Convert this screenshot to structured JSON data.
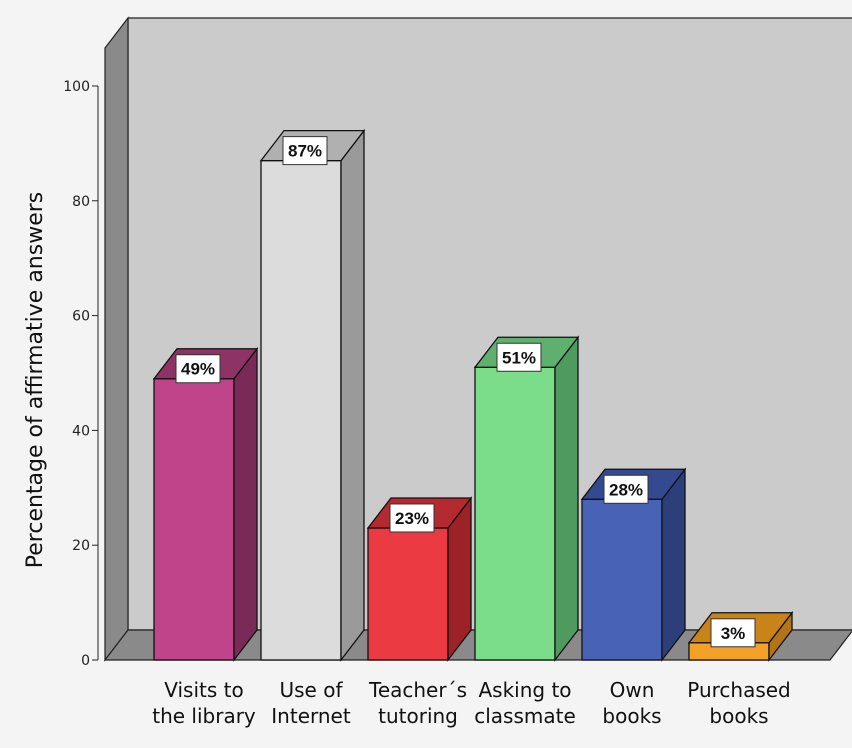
{
  "chart_data": {
    "type": "bar",
    "title": "",
    "xlabel": "",
    "ylabel": "Percentage of affirmative answers",
    "ylim": [
      0,
      100
    ],
    "yticks": [
      "0",
      "20",
      "40",
      "60",
      "80",
      "100"
    ],
    "categories": [
      [
        "Visits to",
        "the library"
      ],
      [
        "Use of",
        "Internet"
      ],
      [
        "Teacher´s",
        "tutoring"
      ],
      [
        "Asking to",
        "classmate"
      ],
      [
        "Own",
        "books"
      ],
      [
        "Purchased",
        "books"
      ]
    ],
    "values": [
      49,
      87,
      23,
      51,
      28,
      3
    ],
    "data_labels": [
      "49%",
      "87%",
      "23%",
      "51%",
      "28%",
      "3%"
    ],
    "bar_colors": [
      "#c0448a",
      "#dcdcdc",
      "#ec3a42",
      "#7bdd8a",
      "#4863b6",
      "#f4a227"
    ],
    "bar_side_colors": [
      "#7a2a56",
      "#9a9a9a",
      "#9c2228",
      "#4f9a5e",
      "#2c3f7a",
      "#b37416"
    ],
    "bar_top_colors": [
      "#8e3366",
      "#b0b0b0",
      "#b52a30",
      "#5fb06f",
      "#334a8e",
      "#c88319"
    ],
    "grid": false,
    "legend": "none",
    "style": "3d",
    "background_color": "#cbcbcb",
    "side_wall_color": "#8a8a8a",
    "floor_color": "#8a8a8a"
  }
}
